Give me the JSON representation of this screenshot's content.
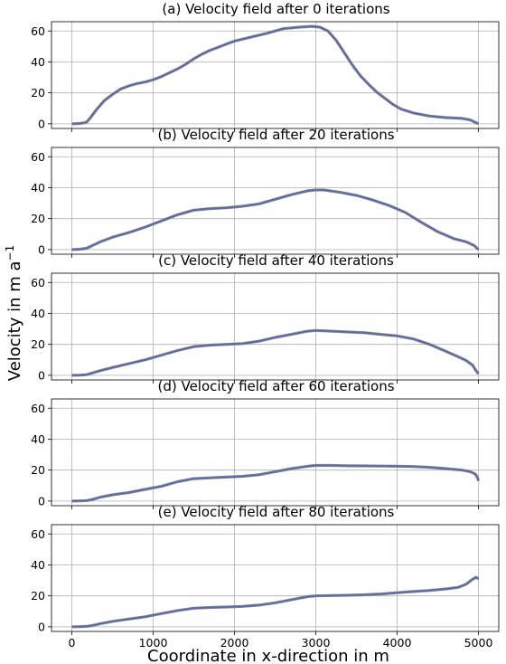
{
  "figure": {
    "ylabel": "Velocity in m a",
    "ylabel_sup": "−1",
    "xlabel": "Coordinate in x-direction in m",
    "colors": {
      "line": "#5b6aa8",
      "line_under": "#8a8a8a",
      "grid": "#b0b0b0"
    }
  },
  "chart_data": [
    {
      "type": "line",
      "title": "(a) Velocity field after 0 iterations",
      "xlim": [
        -250,
        5250
      ],
      "ylim": [
        -3,
        66
      ],
      "xticks": [
        0,
        1000,
        2000,
        3000,
        4000,
        5000
      ],
      "yticks": [
        0,
        20,
        40,
        60
      ],
      "grid": true,
      "x": [
        0,
        100,
        180,
        230,
        300,
        400,
        500,
        600,
        700,
        800,
        900,
        1000,
        1100,
        1200,
        1300,
        1400,
        1500,
        1600,
        1700,
        1800,
        1900,
        2000,
        2200,
        2400,
        2600,
        2800,
        2950,
        3050,
        3150,
        3250,
        3350,
        3450,
        3550,
        3650,
        3750,
        3850,
        3950,
        4050,
        4200,
        4400,
        4600,
        4800,
        4900,
        5000
      ],
      "y": [
        0,
        0.2,
        1,
        4,
        9,
        15,
        19,
        22.5,
        24.5,
        26,
        27,
        28.5,
        30.5,
        33,
        35.5,
        38.5,
        42,
        45,
        47.5,
        49.5,
        51.5,
        53.5,
        56,
        58.5,
        61.5,
        62.5,
        63,
        62.5,
        60,
        54,
        46,
        38,
        31,
        25.5,
        20.5,
        16.5,
        12.5,
        9.5,
        7,
        5,
        4,
        3.5,
        2.5,
        0
      ]
    },
    {
      "type": "line",
      "title": "(b) Velocity field after 20 iterations",
      "xlim": [
        -250,
        5250
      ],
      "ylim": [
        -3,
        66
      ],
      "xticks": [
        0,
        1000,
        2000,
        3000,
        4000,
        5000
      ],
      "yticks": [
        0,
        20,
        40,
        60
      ],
      "grid": true,
      "x": [
        0,
        100,
        180,
        250,
        350,
        500,
        700,
        900,
        1100,
        1300,
        1500,
        1700,
        1900,
        2100,
        2300,
        2500,
        2700,
        2900,
        3000,
        3100,
        3300,
        3500,
        3700,
        3900,
        4100,
        4300,
        4500,
        4700,
        4850,
        4950,
        5000
      ],
      "y": [
        0,
        0.2,
        0.8,
        2.5,
        5,
        8,
        11,
        14.5,
        18.5,
        22.5,
        25.5,
        26.5,
        27,
        28,
        29.5,
        32.5,
        35.5,
        38,
        38.5,
        38.5,
        37,
        35,
        32,
        28.5,
        24,
        17.5,
        11.5,
        7,
        5,
        2.5,
        0
      ]
    },
    {
      "type": "line",
      "title": "(c) Velocity field after 40 iterations",
      "xlim": [
        -250,
        5250
      ],
      "ylim": [
        -3,
        66
      ],
      "xticks": [
        0,
        1000,
        2000,
        3000,
        4000,
        5000
      ],
      "yticks": [
        0,
        20,
        40,
        60
      ],
      "grid": true,
      "x": [
        0,
        100,
        180,
        250,
        350,
        500,
        700,
        900,
        1100,
        1300,
        1500,
        1700,
        1900,
        2100,
        2300,
        2500,
        2700,
        2900,
        3000,
        3200,
        3400,
        3600,
        3800,
        4000,
        4200,
        4400,
        4600,
        4750,
        4850,
        4930,
        4970,
        5000
      ],
      "y": [
        0,
        0.1,
        0.4,
        1.5,
        3,
        5,
        7.5,
        10,
        13,
        16,
        18.5,
        19.5,
        20,
        20.5,
        22,
        24.5,
        26.5,
        28.5,
        29,
        28.5,
        28,
        27.5,
        26.5,
        25.5,
        23.5,
        20,
        15.5,
        12,
        9.5,
        6.5,
        3,
        1
      ]
    },
    {
      "type": "line",
      "title": "(d) Velocity field after 60 iterations",
      "xlim": [
        -250,
        5250
      ],
      "ylim": [
        -3,
        66
      ],
      "xticks": [
        0,
        1000,
        2000,
        3000,
        4000,
        5000
      ],
      "yticks": [
        0,
        20,
        40,
        60
      ],
      "grid": true,
      "x": [
        0,
        100,
        180,
        250,
        350,
        500,
        700,
        900,
        1100,
        1300,
        1500,
        1700,
        1900,
        2100,
        2300,
        2500,
        2700,
        2900,
        3000,
        3200,
        3400,
        3600,
        3800,
        4000,
        4200,
        4400,
        4600,
        4800,
        4900,
        4960,
        4990,
        5000
      ],
      "y": [
        0,
        0.1,
        0.3,
        1,
        2.5,
        4,
        5.5,
        7.5,
        9.5,
        12.5,
        14.5,
        15,
        15.5,
        16,
        17,
        19,
        21,
        22.5,
        23,
        23,
        22.8,
        22.7,
        22.6,
        22.5,
        22.3,
        21.8,
        21,
        20,
        19,
        17.5,
        15,
        13
      ]
    },
    {
      "type": "line",
      "title": "(e) Velocity field after 80 iterations",
      "xlim": [
        -250,
        5250
      ],
      "ylim": [
        -3,
        66
      ],
      "xticks": [
        0,
        1000,
        2000,
        3000,
        4000,
        5000
      ],
      "yticks": [
        0,
        20,
        40,
        60
      ],
      "grid": true,
      "x": [
        0,
        100,
        180,
        250,
        350,
        500,
        700,
        900,
        1100,
        1300,
        1500,
        1700,
        1900,
        2100,
        2300,
        2500,
        2700,
        2900,
        3000,
        3200,
        3400,
        3600,
        3800,
        4000,
        4200,
        4400,
        4600,
        4750,
        4850,
        4920,
        4970,
        5000
      ],
      "y": [
        0,
        0.1,
        0.3,
        0.8,
        2,
        3.5,
        5,
        6.5,
        8.5,
        10.5,
        12,
        12.5,
        12.8,
        13.2,
        14,
        15.5,
        17.5,
        19.5,
        20,
        20.2,
        20.4,
        20.7,
        21.2,
        22,
        22.8,
        23.5,
        24.5,
        25.5,
        27.5,
        30.5,
        32,
        31
      ]
    }
  ]
}
